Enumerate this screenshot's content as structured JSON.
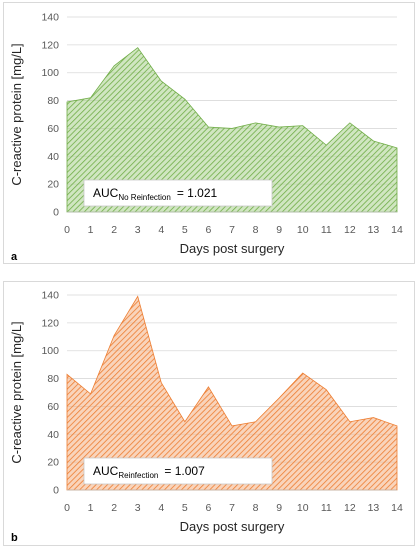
{
  "chart_data": [
    {
      "type": "area",
      "panel_label": "a",
      "xlabel": "Days post surgery",
      "ylabel": "C-reactive protein [mg/L]",
      "x": [
        0,
        1,
        2,
        3,
        4,
        5,
        6,
        7,
        8,
        9,
        10,
        11,
        12,
        13,
        14
      ],
      "series": [
        {
          "values": [
            79,
            82,
            105,
            118,
            94,
            81,
            61,
            60,
            64,
            61,
            62,
            48,
            64,
            51,
            46
          ]
        }
      ],
      "ylim": [
        0,
        140
      ],
      "yticks": [
        0,
        20,
        40,
        60,
        80,
        100,
        120,
        140
      ],
      "xticks": [
        0,
        1,
        2,
        3,
        4,
        5,
        6,
        7,
        8,
        9,
        10,
        11,
        12,
        13,
        14
      ],
      "grid": true,
      "fill_color": "#a9d18e",
      "stroke_color": "#70ad47",
      "annotation": {
        "prefix": "AUC",
        "subscript": "No Reinfection",
        "value": "= 1.021"
      }
    },
    {
      "type": "area",
      "panel_label": "b",
      "xlabel": "Days post surgery",
      "ylabel": "C-reactive protein [mg/L]",
      "x": [
        0,
        1,
        2,
        3,
        4,
        5,
        6,
        7,
        8,
        9,
        10,
        11,
        12,
        13,
        14
      ],
      "series": [
        {
          "values": [
            83,
            69,
            111,
            139,
            77,
            49,
            74,
            46,
            49,
            66,
            84,
            72,
            49,
            52,
            46
          ]
        }
      ],
      "ylim": [
        0,
        140
      ],
      "yticks": [
        0,
        20,
        40,
        60,
        80,
        100,
        120,
        140
      ],
      "xticks": [
        0,
        1,
        2,
        3,
        4,
        5,
        6,
        7,
        8,
        9,
        10,
        11,
        12,
        13,
        14
      ],
      "grid": true,
      "fill_color": "#f4b183",
      "stroke_color": "#ed7d31",
      "annotation": {
        "prefix": "AUC",
        "subscript": "Reinfection",
        "value": "= 1.007"
      }
    }
  ]
}
